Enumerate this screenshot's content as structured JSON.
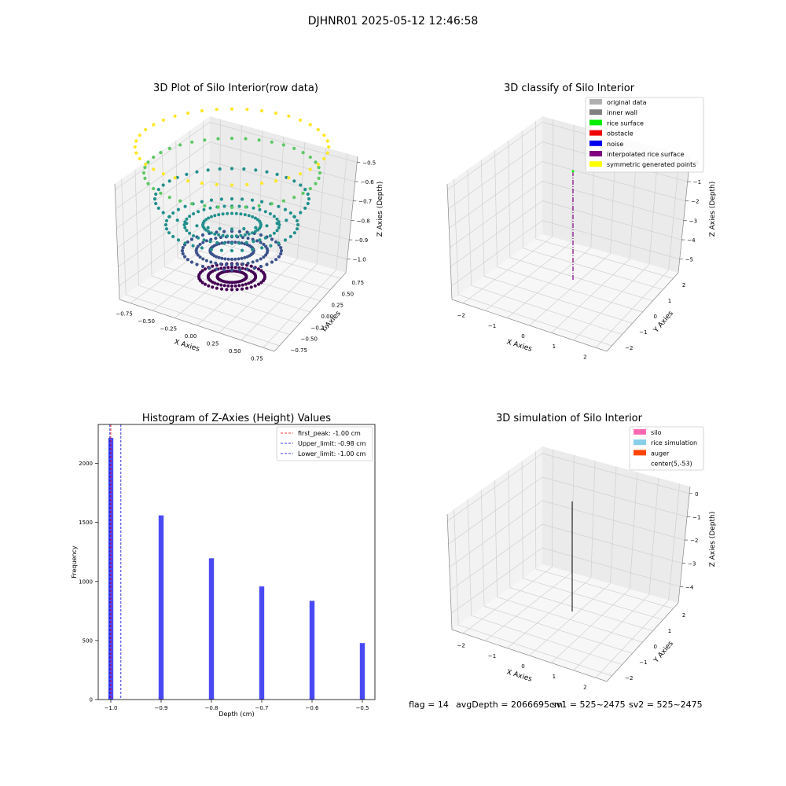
{
  "figure": {
    "suptitle": "DJHNR01 2025-05-12 12:46:58",
    "status": {
      "flag": "flag = 14",
      "avg_depth": "avgDepth = 2066695cm",
      "sv1": "sv1 = 525~2475",
      "sv2": "sv2 = 525~2475"
    }
  },
  "colors": {
    "hist_bar": "#4a4af5",
    "first_peak": "#ff0000",
    "limit_lines": "#0000cc",
    "viridis": [
      "#440154",
      "#3b528b",
      "#21908d",
      "#5dc963",
      "#fde725"
    ]
  },
  "chart_data": [
    {
      "type": "scatter",
      "projection": "3d",
      "title": "3D Plot of Silo Interior(row data)",
      "xlabel": "X Axies",
      "ylabel": "Y Axies",
      "zlabel": "Z Axies (Depth)",
      "colormap": "viridis",
      "xlim": [
        -0.9,
        0.9
      ],
      "ylim": [
        -0.9,
        0.9
      ],
      "zlim": [
        -1.05,
        -0.48
      ],
      "xticks": [
        "−0.75",
        "−0.50",
        "−0.25",
        "0.00",
        "0.25",
        "0.50",
        "0.75"
      ],
      "yticks": [
        "−0.75",
        "−0.50",
        "−0.25",
        "0.00",
        "0.25",
        "0.50",
        "0.75"
      ],
      "zticks": [
        "−0.5",
        "−0.6",
        "−0.7",
        "−0.8",
        "−0.9",
        "−1.0"
      ],
      "rings": [
        {
          "z": -1.0,
          "radius": 0.3,
          "points": 2216
        },
        {
          "z": -0.9,
          "radius": 0.45,
          "points": 1560
        },
        {
          "z": -0.8,
          "radius": 0.6,
          "points": 1196
        },
        {
          "z": -0.7,
          "radius": 0.7,
          "points": 958
        },
        {
          "z": -0.6,
          "radius": 0.8,
          "points": 836
        },
        {
          "z": -0.5,
          "radius": 0.88,
          "points": 478
        }
      ],
      "grid": true
    },
    {
      "type": "scatter",
      "projection": "3d",
      "title": "3D classify of Silo Interior",
      "xlabel": "X Axies",
      "ylabel": "Y Axies",
      "zlabel": "Z Axies (Depth)",
      "xlim": [
        -2.5,
        2.5
      ],
      "ylim": [
        -2.5,
        2.5
      ],
      "zlim": [
        -5,
        0
      ],
      "xticks": [
        "−2",
        "−1",
        "0",
        "1",
        "2"
      ],
      "yticks": [
        "−2",
        "−1",
        "0",
        "1",
        "2"
      ],
      "zticks": [
        "0",
        "−1",
        "−2",
        "−3",
        "−4",
        "−5"
      ],
      "legend": [
        {
          "label": "original data",
          "color": "#b0b0b0"
        },
        {
          "label": "inner wall",
          "color": "#808080"
        },
        {
          "label": "rice surface",
          "color": "#00ee00"
        },
        {
          "label": "obstacle",
          "color": "#ee0000"
        },
        {
          "label": "noise",
          "color": "#0000ee"
        },
        {
          "label": "interpolated rice surface",
          "color": "#800080"
        },
        {
          "label": "symmetric generated points",
          "color": "#ffff00"
        }
      ],
      "legend_loc": "upper right",
      "grid": true
    },
    {
      "type": "bar",
      "title": "Histogram of Z-Axies (Height) Values",
      "xlabel": "Depth (cm)",
      "ylabel": "Frequency",
      "x": [
        -1.0,
        -0.9,
        -0.8,
        -0.7,
        -0.6,
        -0.5
      ],
      "values": [
        2216,
        1560,
        1196,
        958,
        836,
        478
      ],
      "bin_width": 0.01,
      "xlim": [
        -1.025,
        -0.475
      ],
      "ylim": [
        0,
        2330
      ],
      "xticks": [
        -1.0,
        -0.9,
        -0.8,
        -0.7,
        -0.6,
        -0.5
      ],
      "xtick_labels": [
        "−1.0",
        "−0.9",
        "−0.8",
        "−0.7",
        "−0.6",
        "−0.5"
      ],
      "yticks": [
        0,
        500,
        1000,
        1500,
        2000
      ],
      "ytick_labels": [
        "0",
        "500",
        "1000",
        "1500",
        "2000"
      ],
      "vlines": [
        {
          "x": -1.0,
          "color": "#ff0000",
          "label": "first_peak: -1.00 cm"
        },
        {
          "x": -0.98,
          "color": "#0000cc",
          "label": "Upper_limit: -0.98 cm"
        },
        {
          "x": -1.0,
          "color": "#0000cc",
          "label": "Lower_limit: -1.00 cm"
        }
      ],
      "legend_loc": "upper right",
      "grid": false
    },
    {
      "type": "scatter",
      "projection": "3d",
      "title": "3D simulation of Silo Interior",
      "xlabel": "X Axies",
      "ylabel": "Y Axies",
      "zlabel": "Z Axies (Depth)",
      "xlim": [
        -2.5,
        2.5
      ],
      "ylim": [
        -2.5,
        2.5
      ],
      "zlim": [
        -4.6,
        0.2
      ],
      "xticks": [
        "−2",
        "−1",
        "0",
        "1",
        "2"
      ],
      "yticks": [
        "−2",
        "−1",
        "0",
        "1",
        "2"
      ],
      "zticks": [
        "0",
        "−1",
        "−2",
        "−3",
        "−4"
      ],
      "legend": [
        {
          "label": "silo",
          "color": "#ff69b4"
        },
        {
          "label": "rice simulation",
          "color": "#87ceeb"
        },
        {
          "label": "auger",
          "color": "#ff4500"
        },
        {
          "label": "center(5,-53)",
          "color": "#ffffff"
        }
      ],
      "legend_loc": "upper right",
      "grid": true
    }
  ]
}
